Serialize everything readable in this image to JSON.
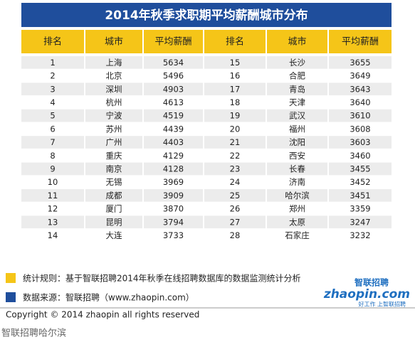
{
  "header": {
    "title": "2014年秋季求职期平均薪酬城市分布"
  },
  "table": {
    "columns": [
      "排名",
      "城市",
      "平均薪酬",
      "排名",
      "城市",
      "平均薪酬"
    ],
    "rows": [
      [
        1,
        "上海",
        5634,
        15,
        "长沙",
        3655
      ],
      [
        2,
        "北京",
        5496,
        16,
        "合肥",
        3649
      ],
      [
        3,
        "深圳",
        4903,
        17,
        "青岛",
        3643
      ],
      [
        4,
        "杭州",
        4613,
        18,
        "天津",
        3640
      ],
      [
        5,
        "宁波",
        4519,
        19,
        "武汉",
        3610
      ],
      [
        6,
        "苏州",
        4439,
        20,
        "福州",
        3608
      ],
      [
        7,
        "广州",
        4403,
        21,
        "沈阳",
        3603
      ],
      [
        8,
        "重庆",
        4129,
        22,
        "西安",
        3460
      ],
      [
        9,
        "南京",
        4128,
        23,
        "长春",
        3455
      ],
      [
        10,
        "无锡",
        3969,
        24,
        "济南",
        3452
      ],
      [
        11,
        "成都",
        3909,
        25,
        "哈尔滨",
        3451
      ],
      [
        12,
        "厦门",
        3870,
        26,
        "郑州",
        3359
      ],
      [
        13,
        "昆明",
        3794,
        27,
        "太原",
        3247
      ],
      [
        14,
        "大连",
        3733,
        28,
        "石家庄",
        3232
      ]
    ]
  },
  "notes": [
    "统计规则：基于智联招聘2014年秋季在线招聘数据库的数据监测统计分析",
    "数据来源：智联招聘（www.zhaopin.com）"
  ],
  "logo": {
    "domain": "zhaopin.com",
    "brand": "智联招聘",
    "slogan": "好工作 上智联招聘"
  },
  "footer": {
    "copyright": "Copyright  ©  2014  zhaopin all rights reserved",
    "caption": "智联招聘哈尔滨"
  }
}
